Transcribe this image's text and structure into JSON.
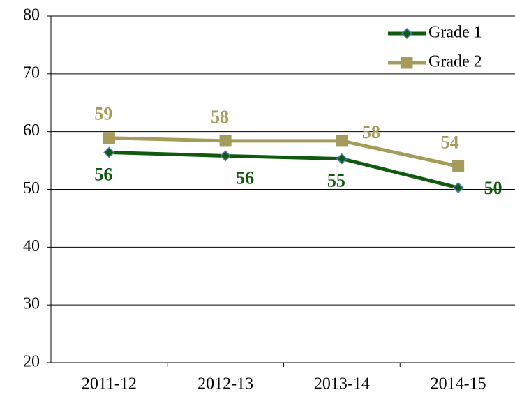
{
  "chart_data": {
    "type": "line",
    "categories": [
      "2011-12",
      "2012-13",
      "2013-14",
      "2014-15"
    ],
    "series": [
      {
        "name": "Grade 1",
        "color": "#0f5a0f",
        "marker_color": "#0f5a0f",
        "marker_edge": "#4f81bd",
        "marker": "diamond",
        "values": [
          56.4,
          55.8,
          55.3,
          50.3
        ],
        "value_labels": [
          "56",
          "56",
          "55",
          "50"
        ]
      },
      {
        "name": "Grade 2",
        "color": "#a59b5a",
        "marker_color": "#a59b5a",
        "marker_edge": "#a59b5a",
        "marker": "square",
        "values": [
          58.9,
          58.4,
          58.4,
          54.0
        ],
        "value_labels": [
          "59",
          "58",
          "58",
          "54"
        ]
      }
    ],
    "ylim": [
      20,
      80
    ],
    "yticks": [
      20,
      30,
      40,
      50,
      60,
      70,
      80
    ],
    "grid": true,
    "legend": "upper-right"
  }
}
